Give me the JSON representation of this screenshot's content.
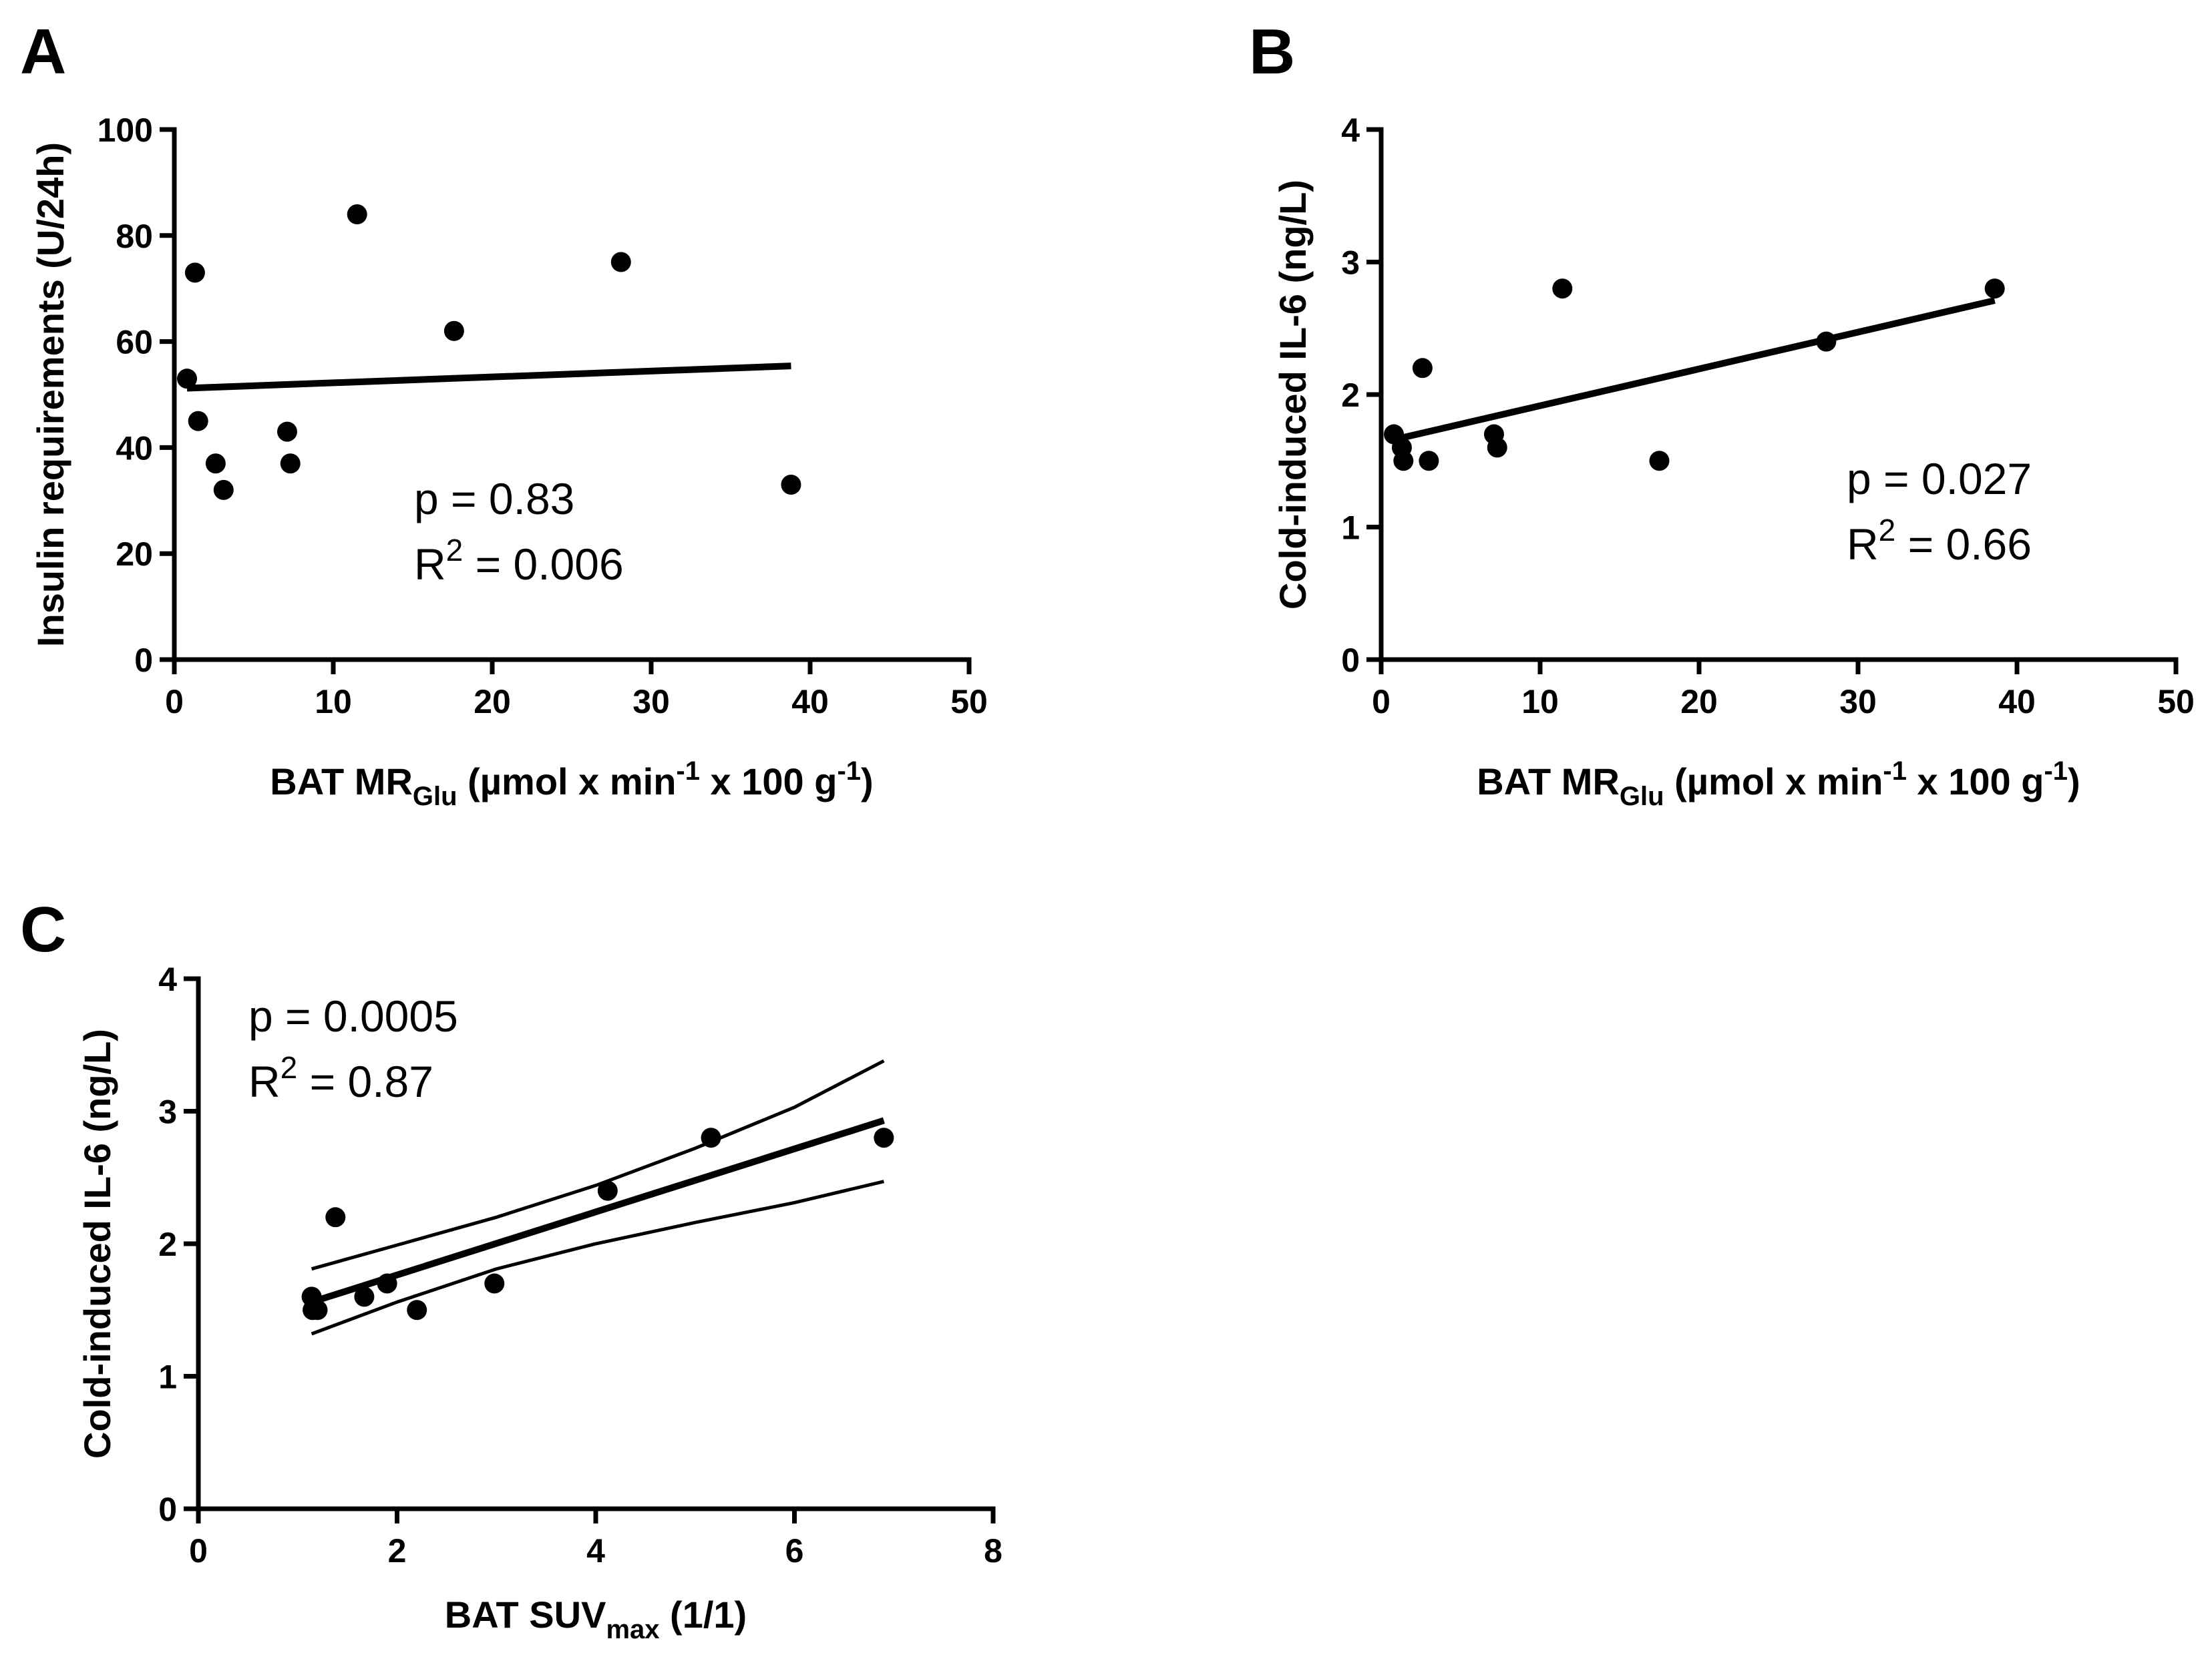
{
  "chart_data": [
    {
      "panel": "A",
      "type": "scatter",
      "xlabel": {
        "main": "BAT MR",
        "sub": "Glu",
        "rest1": " (µmol x min",
        "sup1": "-1",
        "rest2": " x 100 g",
        "sup2": "-1",
        "rest3": ")"
      },
      "ylabel": "Insulin requirements (U/24h)",
      "xlim": [
        0,
        50
      ],
      "ylim": [
        0,
        100
      ],
      "xticks": [
        0,
        10,
        20,
        30,
        40,
        50
      ],
      "yticks": [
        0,
        20,
        40,
        60,
        80,
        100
      ],
      "points": [
        {
          "x": 0.8,
          "y": 53
        },
        {
          "x": 1.3,
          "y": 73
        },
        {
          "x": 1.5,
          "y": 45
        },
        {
          "x": 2.6,
          "y": 37
        },
        {
          "x": 3.1,
          "y": 32
        },
        {
          "x": 7.1,
          "y": 43
        },
        {
          "x": 7.3,
          "y": 37
        },
        {
          "x": 11.5,
          "y": 84
        },
        {
          "x": 17.6,
          "y": 62
        },
        {
          "x": 28.1,
          "y": 75
        },
        {
          "x": 38.8,
          "y": 33
        }
      ],
      "fit": {
        "x1": 0.8,
        "y1": 51.2,
        "x2": 38.8,
        "y2": 55.4
      },
      "stats": {
        "p": "p = 0.83",
        "r2_prefix": "R",
        "r2_sup": "2",
        "r2_value": " = 0.006"
      }
    },
    {
      "panel": "B",
      "type": "scatter",
      "xlabel": {
        "main": "BAT MR",
        "sub": "Glu",
        "rest1": " (µmol x min",
        "sup1": "-1",
        "rest2": " x 100 g",
        "sup2": "-1",
        "rest3": ")"
      },
      "ylabel": "Cold-induced IL-6 (ng/L)",
      "xlim": [
        0,
        50
      ],
      "ylim": [
        0,
        4
      ],
      "xticks": [
        0,
        10,
        20,
        30,
        40,
        50
      ],
      "yticks": [
        0,
        1,
        2,
        3,
        4
      ],
      "points": [
        {
          "x": 0.8,
          "y": 1.7
        },
        {
          "x": 1.3,
          "y": 1.6
        },
        {
          "x": 1.4,
          "y": 1.5
        },
        {
          "x": 2.6,
          "y": 2.2
        },
        {
          "x": 3.0,
          "y": 1.5
        },
        {
          "x": 7.1,
          "y": 1.7
        },
        {
          "x": 7.3,
          "y": 1.6
        },
        {
          "x": 11.4,
          "y": 2.8
        },
        {
          "x": 17.5,
          "y": 1.5
        },
        {
          "x": 28.0,
          "y": 2.4
        },
        {
          "x": 38.6,
          "y": 2.8
        }
      ],
      "fit": {
        "x1": 0.8,
        "y1": 1.66,
        "x2": 38.6,
        "y2": 2.71
      },
      "stats": {
        "p": "p = 0.027",
        "r2_prefix": "R",
        "r2_sup": "2",
        "r2_value": " = 0.66"
      }
    },
    {
      "panel": "C",
      "type": "scatter",
      "xlabel": {
        "main": "BAT SUV",
        "sub": "max",
        "rest1": " (1/1)",
        "sup1": "",
        "rest2": "",
        "sup2": "",
        "rest3": ""
      },
      "ylabel": "Cold-induced IL-6 (ng/L)",
      "xlim": [
        0,
        8
      ],
      "ylim": [
        0,
        4
      ],
      "xticks": [
        0,
        2,
        4,
        6,
        8
      ],
      "yticks": [
        0,
        1,
        2,
        3,
        4
      ],
      "points": [
        {
          "x": 1.14,
          "y": 1.6
        },
        {
          "x": 1.15,
          "y": 1.5
        },
        {
          "x": 1.2,
          "y": 1.5
        },
        {
          "x": 1.38,
          "y": 2.2
        },
        {
          "x": 1.67,
          "y": 1.6
        },
        {
          "x": 1.9,
          "y": 1.7
        },
        {
          "x": 2.2,
          "y": 1.5
        },
        {
          "x": 2.98,
          "y": 1.7
        },
        {
          "x": 4.12,
          "y": 2.4
        },
        {
          "x": 5.16,
          "y": 2.8
        },
        {
          "x": 6.9,
          "y": 2.8
        }
      ],
      "fit": {
        "x1": 1.14,
        "y1": 1.56,
        "x2": 6.9,
        "y2": 2.93
      },
      "confidence_band": {
        "upper": [
          [
            1.14,
            1.81
          ],
          [
            2.0,
            1.99
          ],
          [
            3.0,
            2.2
          ],
          [
            4.0,
            2.44
          ],
          [
            5.0,
            2.72
          ],
          [
            6.0,
            3.03
          ],
          [
            6.9,
            3.38
          ]
        ],
        "lower": [
          [
            1.14,
            1.32
          ],
          [
            2.0,
            1.56
          ],
          [
            3.0,
            1.81
          ],
          [
            4.0,
            2.0
          ],
          [
            5.0,
            2.16
          ],
          [
            6.0,
            2.31
          ],
          [
            6.9,
            2.47
          ]
        ]
      },
      "stats": {
        "p": "p = 0.0005",
        "r2_prefix": "R",
        "r2_sup": "2",
        "r2_value": " = 0.87"
      }
    }
  ]
}
